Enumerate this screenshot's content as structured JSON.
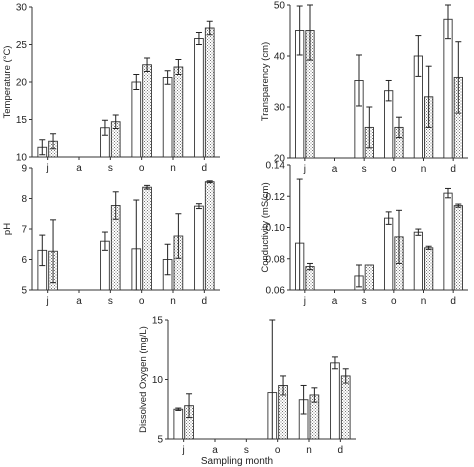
{
  "xlabel": "Sampling month",
  "legend": [
    {
      "name": "",
      "fill": "open"
    },
    {
      "name": "",
      "fill": "hatched"
    }
  ],
  "chart_data": [
    {
      "type": "bar",
      "ylabel": "Temperature (°C)",
      "categories": [
        "j",
        "a",
        "s",
        "o",
        "n",
        "d"
      ],
      "ylim": [
        10,
        30
      ],
      "yticks": [
        10,
        15,
        20,
        25,
        30
      ],
      "series": [
        {
          "values": [
            11.3,
            null,
            13.9,
            20.0,
            20.6,
            25.8
          ],
          "err": [
            1.0,
            null,
            1.0,
            1.0,
            0.9,
            0.8
          ]
        },
        {
          "values": [
            12.1,
            null,
            14.7,
            22.3,
            22.0,
            27.2
          ],
          "err": [
            1.0,
            null,
            0.9,
            0.9,
            1.0,
            0.9
          ]
        }
      ]
    },
    {
      "type": "bar",
      "ylabel": "Transparency (cm)",
      "categories": [
        "j",
        "a",
        "s",
        "o",
        "n",
        "d"
      ],
      "ylim": [
        20,
        50
      ],
      "yticks": [
        20,
        30,
        40,
        50
      ],
      "series": [
        {
          "values": [
            45.0,
            null,
            35.2,
            33.2,
            40.0,
            47.2
          ],
          "err": [
            4.8,
            null,
            5.0,
            2.0,
            4.0,
            3.8
          ]
        },
        {
          "values": [
            45.0,
            null,
            26.0,
            26.0,
            32.0,
            35.8
          ],
          "err": [
            5.8,
            null,
            4.0,
            2.0,
            6.0,
            7.0
          ]
        }
      ]
    },
    {
      "type": "bar",
      "ylabel": "pH",
      "categories": [
        "j",
        "a",
        "s",
        "o",
        "n",
        "d"
      ],
      "ylim": [
        5,
        9
      ],
      "yticks": [
        5,
        6,
        7,
        8,
        9
      ],
      "series": [
        {
          "values": [
            6.3,
            null,
            6.6,
            6.35,
            6.0,
            7.75
          ],
          "err": [
            0.5,
            null,
            0.3,
            1.6,
            0.5,
            0.08
          ]
        },
        {
          "values": [
            6.27,
            null,
            7.77,
            8.37,
            6.77,
            8.55
          ],
          "err": [
            1.03,
            null,
            0.45,
            0.06,
            0.73,
            0.03
          ]
        }
      ]
    },
    {
      "type": "bar",
      "ylabel": "Conductivity (mS/cm)",
      "categories": [
        "j",
        "a",
        "s",
        "o",
        "n",
        "d"
      ],
      "ylim": [
        0.06,
        0.14
      ],
      "yticks": [
        0.06,
        0.08,
        0.1,
        0.12,
        0.14
      ],
      "series": [
        {
          "values": [
            0.09,
            null,
            0.069,
            0.106,
            0.097,
            0.122
          ],
          "err": [
            0.041,
            null,
            0.007,
            0.004,
            0.002,
            0.003
          ]
        },
        {
          "values": [
            0.075,
            null,
            0.076,
            0.094,
            0.087,
            0.114
          ],
          "err": [
            0.002,
            null,
            0.0,
            0.017,
            0.001,
            0.001
          ]
        }
      ]
    },
    {
      "type": "bar",
      "ylabel": "Dissolved Oxygen (mg/L)",
      "categories": [
        "j",
        "a",
        "s",
        "o",
        "n",
        "d"
      ],
      "ylim": [
        5,
        15
      ],
      "yticks": [
        5,
        10,
        15
      ],
      "series": [
        {
          "values": [
            7.5,
            null,
            null,
            8.9,
            8.3,
            11.4
          ],
          "err": [
            0.1,
            null,
            null,
            6.1,
            1.2,
            0.5
          ]
        },
        {
          "values": [
            7.8,
            null,
            null,
            9.5,
            8.7,
            10.3
          ],
          "err": [
            1.0,
            null,
            null,
            0.8,
            0.6,
            0.6
          ]
        }
      ]
    }
  ]
}
